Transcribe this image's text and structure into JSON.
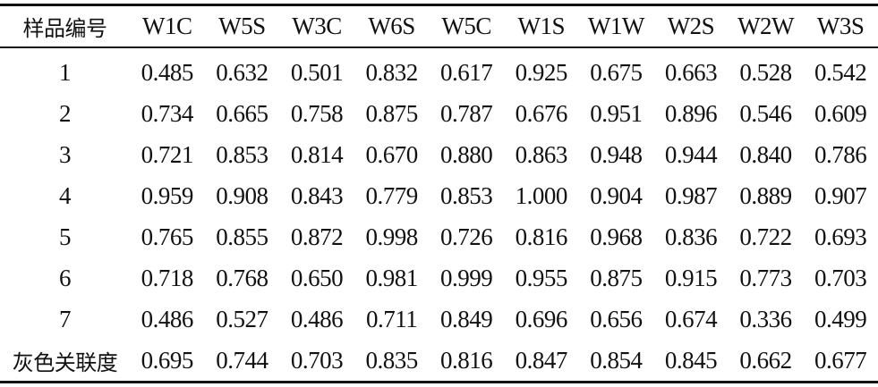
{
  "table": {
    "headers": [
      "样品编号",
      "W1C",
      "W5S",
      "W3C",
      "W6S",
      "W5C",
      "W1S",
      "W1W",
      "W2S",
      "W2W",
      "W3S"
    ],
    "rows": [
      [
        "1",
        "0.485",
        "0.632",
        "0.501",
        "0.832",
        "0.617",
        "0.925",
        "0.675",
        "0.663",
        "0.528",
        "0.542"
      ],
      [
        "2",
        "0.734",
        "0.665",
        "0.758",
        "0.875",
        "0.787",
        "0.676",
        "0.951",
        "0.896",
        "0.546",
        "0.609"
      ],
      [
        "3",
        "0.721",
        "0.853",
        "0.814",
        "0.670",
        "0.880",
        "0.863",
        "0.948",
        "0.944",
        "0.840",
        "0.786"
      ],
      [
        "4",
        "0.959",
        "0.908",
        "0.843",
        "0.779",
        "0.853",
        "1.000",
        "0.904",
        "0.987",
        "0.889",
        "0.907"
      ],
      [
        "5",
        "0.765",
        "0.855",
        "0.872",
        "0.998",
        "0.726",
        "0.816",
        "0.968",
        "0.836",
        "0.722",
        "0.693"
      ],
      [
        "6",
        "0.718",
        "0.768",
        "0.650",
        "0.981",
        "0.999",
        "0.955",
        "0.875",
        "0.915",
        "0.773",
        "0.703"
      ],
      [
        "7",
        "0.486",
        "0.527",
        "0.486",
        "0.711",
        "0.849",
        "0.696",
        "0.656",
        "0.674",
        "0.336",
        "0.499"
      ],
      [
        "灰色关联度",
        "0.695",
        "0.744",
        "0.703",
        "0.835",
        "0.816",
        "0.847",
        "0.854",
        "0.845",
        "0.662",
        "0.677"
      ]
    ]
  }
}
